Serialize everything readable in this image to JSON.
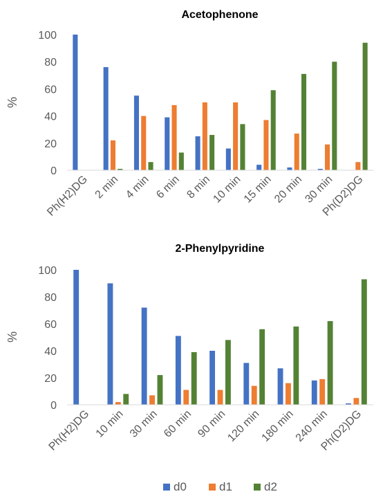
{
  "colors": {
    "d0": "#4472c4",
    "d1": "#ed7d31",
    "d2": "#548235"
  },
  "legend": [
    {
      "name": "d0",
      "color": "#4472c4"
    },
    {
      "name": "d1",
      "color": "#ed7d31"
    },
    {
      "name": "d2",
      "color": "#548235"
    }
  ],
  "chart_data": [
    {
      "type": "bar",
      "title": "Acetophenone",
      "ylabel": "%",
      "xlabel": "",
      "ylim": [
        0,
        100
      ],
      "yticks": [
        0,
        20,
        40,
        60,
        80,
        100
      ],
      "grid": false,
      "legend_position": "bottom",
      "categories": [
        "Ph(H2)DG",
        "2 min",
        "4 min",
        "6 min",
        "8 min",
        "10 min",
        "15 min",
        "20 min",
        "30 min",
        "Ph(D2)DG"
      ],
      "series": [
        {
          "name": "d0",
          "values": [
            100,
            76,
            55,
            39,
            25,
            16,
            4,
            2,
            1,
            0
          ]
        },
        {
          "name": "d1",
          "values": [
            0,
            22,
            40,
            48,
            50,
            50,
            37,
            27,
            19,
            6
          ]
        },
        {
          "name": "d2",
          "values": [
            0,
            1,
            6,
            13,
            26,
            34,
            59,
            71,
            80,
            94
          ]
        }
      ]
    },
    {
      "type": "bar",
      "title": "2-Phenylpyridine",
      "ylabel": "%",
      "xlabel": "",
      "ylim": [
        0,
        100
      ],
      "yticks": [
        0,
        20,
        40,
        60,
        80,
        100
      ],
      "grid": false,
      "legend_position": "bottom",
      "categories": [
        "Ph(H2)DG",
        "10 min",
        "30 min",
        "60 min",
        "90 min",
        "120 min",
        "180 min",
        "240 min",
        "Ph(D2)DG"
      ],
      "series": [
        {
          "name": "d0",
          "values": [
            100,
            90,
            72,
            51,
            40,
            31,
            27,
            18,
            1
          ]
        },
        {
          "name": "d1",
          "values": [
            0,
            2,
            7,
            11,
            11,
            14,
            16,
            19,
            5
          ]
        },
        {
          "name": "d2",
          "values": [
            0,
            8,
            22,
            39,
            48,
            56,
            58,
            62,
            93
          ]
        }
      ]
    }
  ]
}
